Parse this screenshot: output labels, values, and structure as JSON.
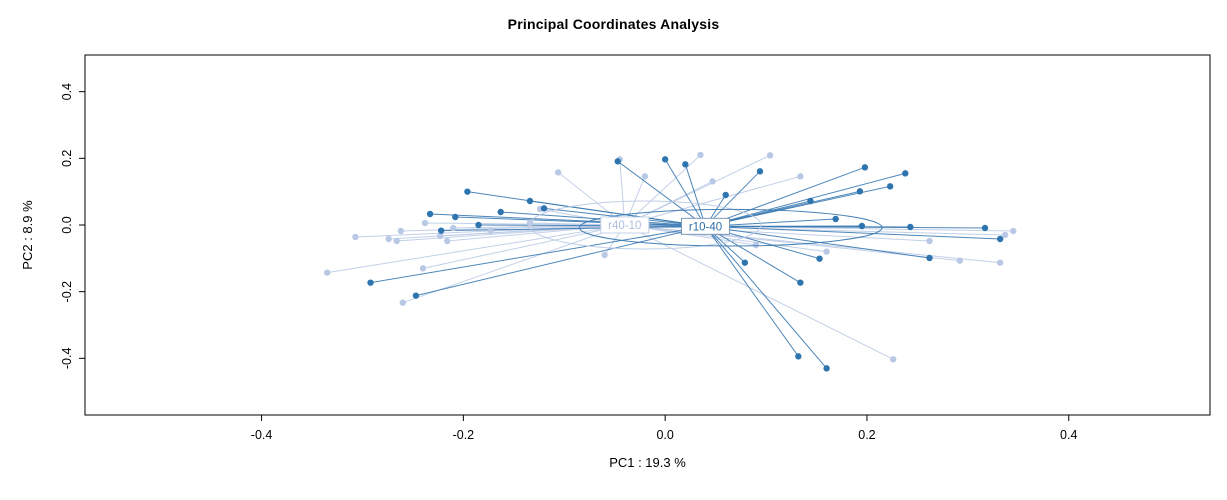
{
  "title": "Principal Coordinates Analysis",
  "chart_data": {
    "type": "scatter",
    "subtype": "pcoa-spider",
    "title": "Principal Coordinates Analysis",
    "xlabel": "PC1 :  19.3 %",
    "ylabel": "PC2 :  8.9 %",
    "xlim": [
      -0.575,
      0.54
    ],
    "ylim": [
      -0.57,
      0.51
    ],
    "xticks": [
      -0.4,
      -0.2,
      0.0,
      0.2,
      0.4
    ],
    "yticks": [
      -0.4,
      -0.2,
      0.0,
      0.2,
      0.4
    ],
    "grid": false,
    "legend_position": "none",
    "groups": [
      {
        "name": "r40-10",
        "point_color": "#b9c9e5",
        "line_color": "#bccbe6",
        "label_text_color": "#aebfdd",
        "label_border_color": "#c6d2e8",
        "centroid": [
          -0.04,
          0.0
        ],
        "ellipse": {
          "cx": -0.02,
          "cy": 0.0,
          "rx": 0.115,
          "ry": 0.072
        },
        "points": [
          [
            -0.335,
            -0.143
          ],
          [
            -0.307,
            -0.036
          ],
          [
            -0.274,
            -0.042
          ],
          [
            -0.266,
            -0.048
          ],
          [
            -0.262,
            -0.018
          ],
          [
            -0.26,
            -0.233
          ],
          [
            -0.24,
            -0.13
          ],
          [
            -0.238,
            0.006
          ],
          [
            -0.223,
            -0.033
          ],
          [
            -0.216,
            -0.048
          ],
          [
            -0.21,
            -0.009
          ],
          [
            -0.173,
            -0.018
          ],
          [
            -0.134,
            0.006
          ],
          [
            -0.124,
            0.048
          ],
          [
            -0.106,
            0.158
          ],
          [
            -0.06,
            -0.09
          ],
          [
            -0.045,
            0.197
          ],
          [
            -0.02,
            0.146
          ],
          [
            0.035,
            0.21
          ],
          [
            0.047,
            0.131
          ],
          [
            0.09,
            -0.06
          ],
          [
            0.104,
            0.209
          ],
          [
            0.134,
            0.146
          ],
          [
            0.16,
            -0.08
          ],
          [
            0.226,
            -0.403
          ],
          [
            0.262,
            -0.048
          ],
          [
            0.292,
            -0.107
          ],
          [
            0.332,
            -0.113
          ],
          [
            0.337,
            -0.03
          ],
          [
            0.345,
            -0.018
          ]
        ]
      },
      {
        "name": "r10-40",
        "point_color": "#2e75b0",
        "line_color": "#3a7ab2",
        "label_text_color": "#2e6da6",
        "label_border_color": "#7f98b8",
        "centroid": [
          0.04,
          -0.004
        ],
        "ellipse": {
          "cx": 0.065,
          "cy": -0.008,
          "rx": 0.15,
          "ry": 0.055
        },
        "points": [
          [
            -0.196,
            0.1
          ],
          [
            -0.233,
            0.033
          ],
          [
            -0.208,
            0.024
          ],
          [
            -0.185,
            0.0
          ],
          [
            -0.163,
            0.039
          ],
          [
            -0.134,
            0.072
          ],
          [
            -0.12,
            0.05
          ],
          [
            -0.047,
            0.191
          ],
          [
            0.0,
            0.197
          ],
          [
            0.02,
            0.182
          ],
          [
            0.025,
            0.012
          ],
          [
            0.06,
            0.09
          ],
          [
            0.094,
            0.161
          ],
          [
            0.144,
            0.072
          ],
          [
            0.169,
            0.018
          ],
          [
            0.193,
            0.101
          ],
          [
            0.198,
            0.173
          ],
          [
            0.223,
            0.116
          ],
          [
            0.238,
            0.155
          ],
          [
            0.195,
            -0.003
          ],
          [
            0.243,
            -0.006
          ],
          [
            0.317,
            -0.009
          ],
          [
            0.332,
            -0.042
          ],
          [
            0.262,
            -0.099
          ],
          [
            0.134,
            -0.173
          ],
          [
            0.153,
            -0.101
          ],
          [
            0.079,
            -0.113
          ],
          [
            0.132,
            -0.394
          ],
          [
            0.16,
            -0.43
          ],
          [
            -0.292,
            -0.173
          ],
          [
            -0.247,
            -0.212
          ],
          [
            -0.222,
            -0.017
          ]
        ]
      }
    ],
    "box_color": "#000000",
    "tick_label_color": "#000000"
  }
}
